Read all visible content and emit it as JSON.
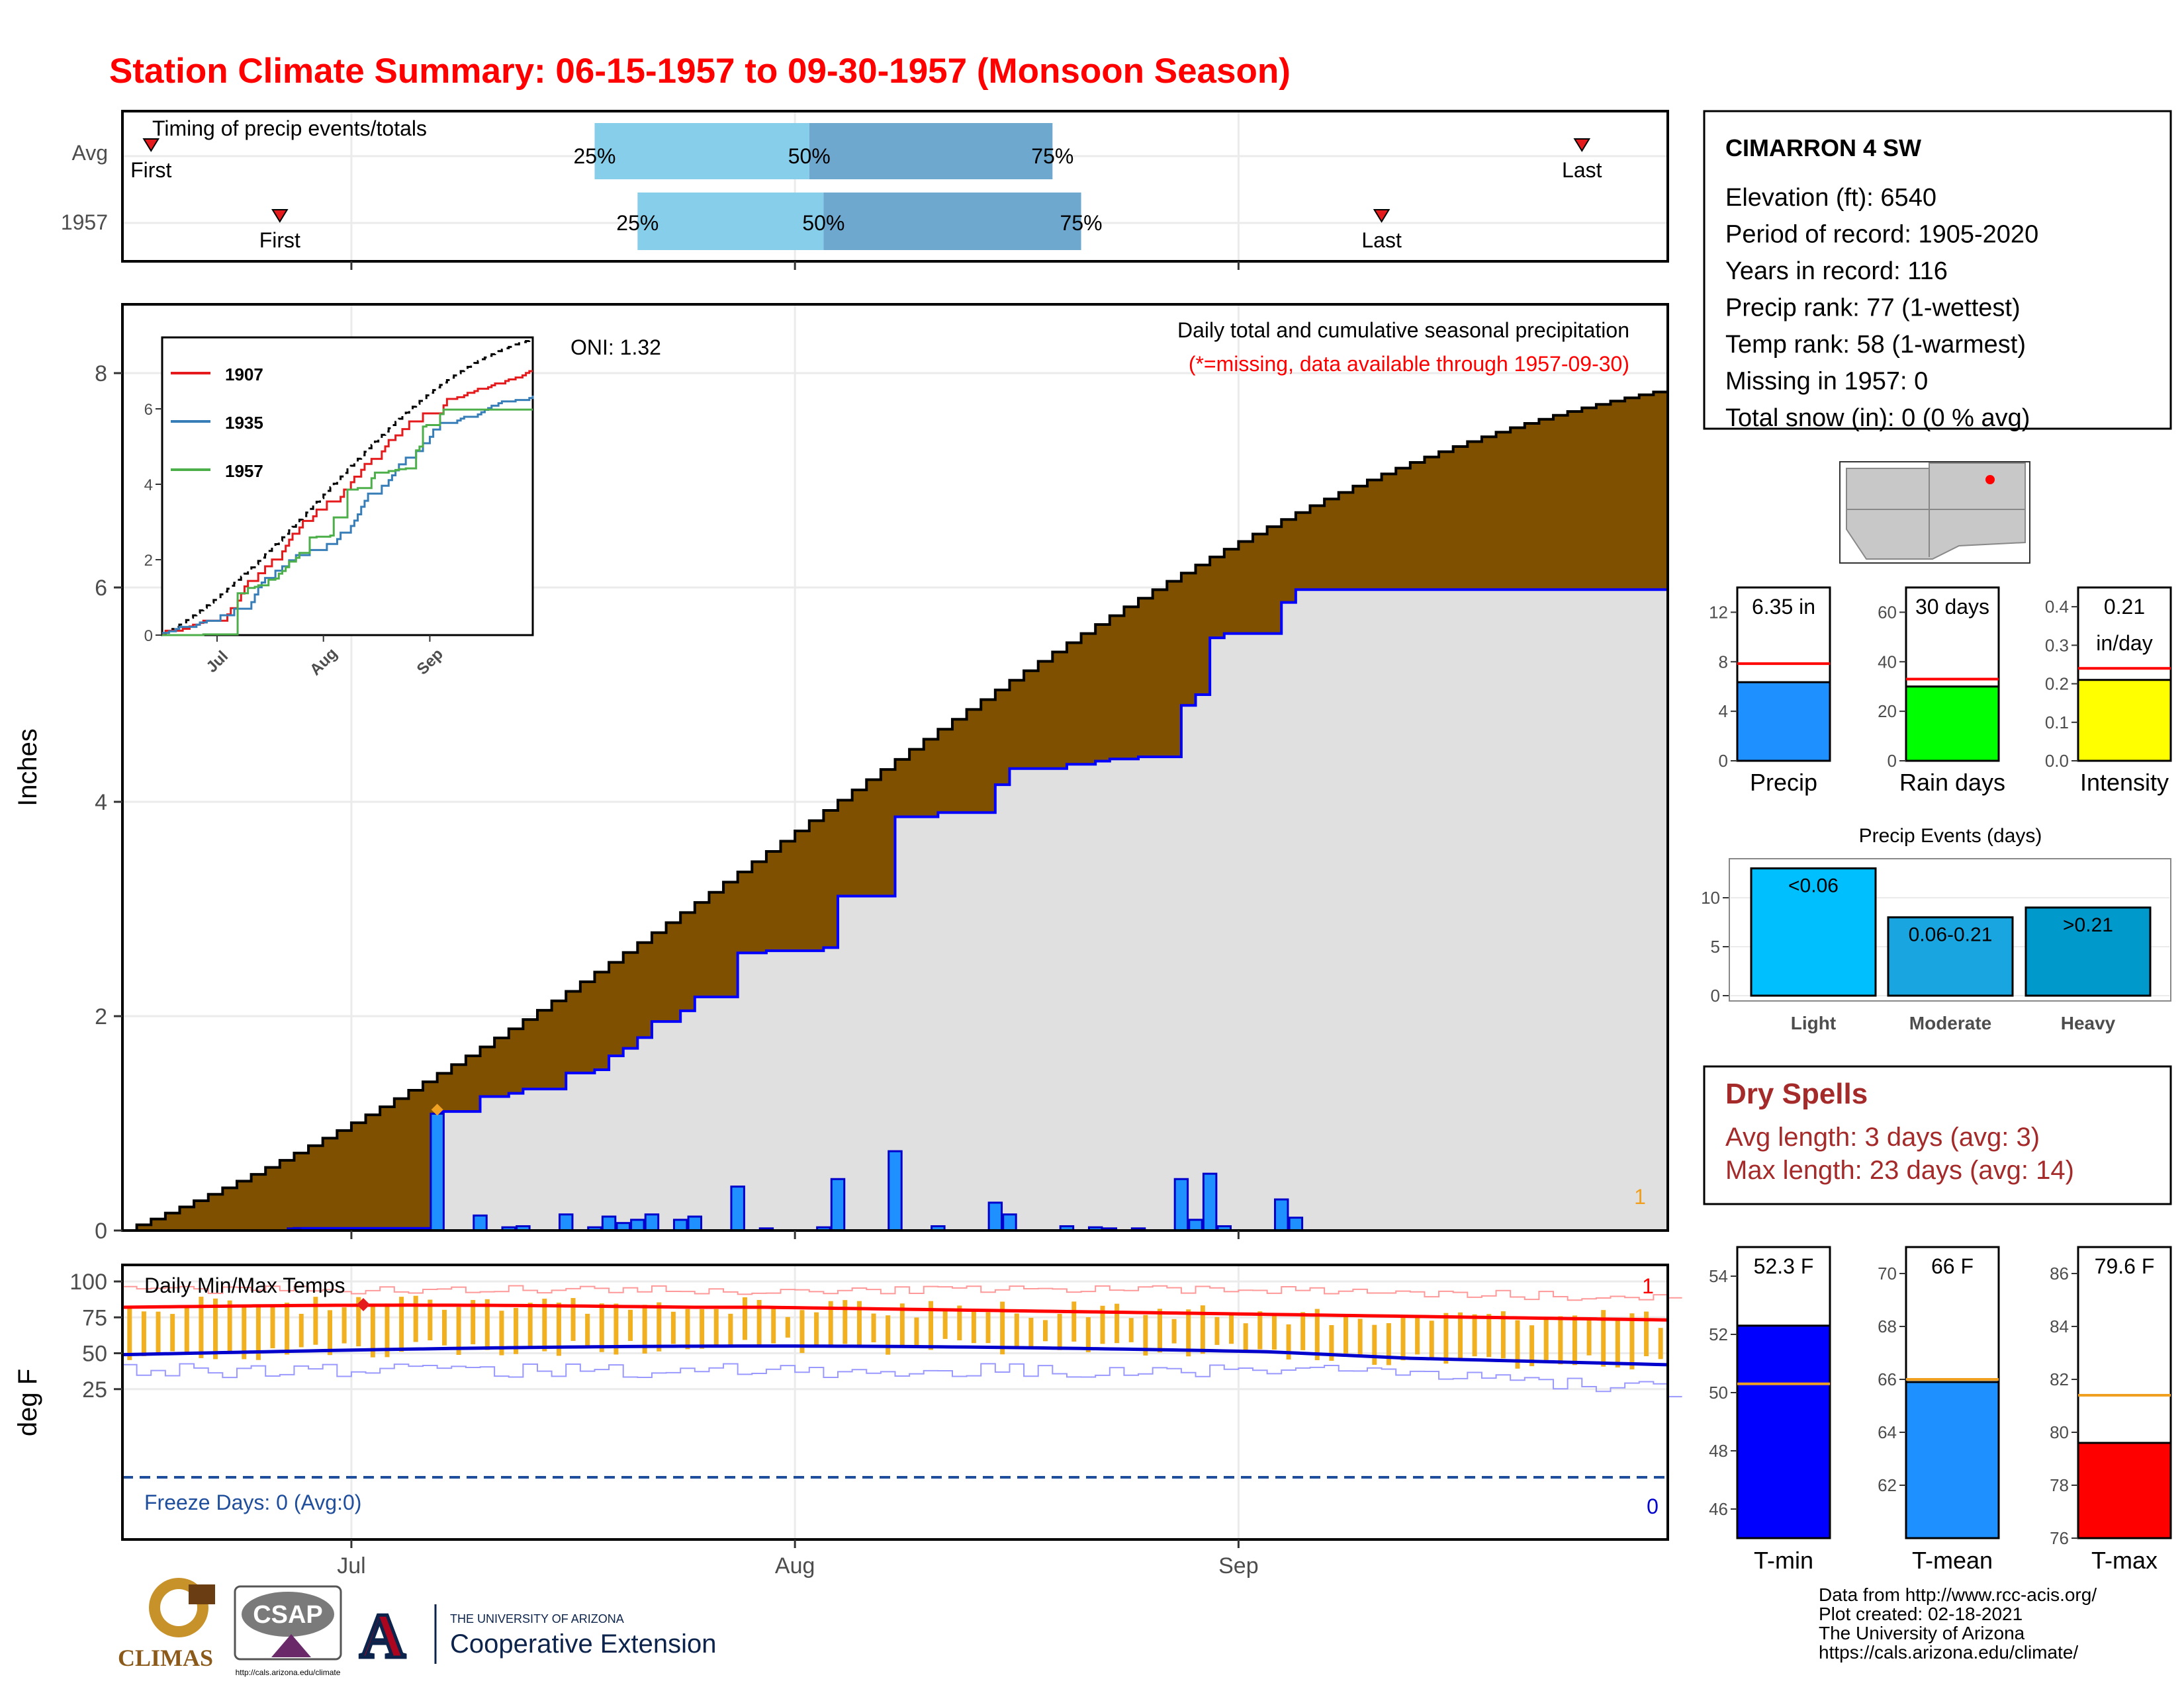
{
  "title": "Station Climate Summary: 06-15-1957 to 09-30-1957 (Monsoon Season)",
  "timing_panel": {
    "label": "Timing of precip events/totals",
    "rows": [
      {
        "name": "Avg",
        "first": "Jun 17",
        "p25": "Jul 18",
        "p50": "Aug 2",
        "p75": "Aug 19",
        "last": "Sep 25"
      },
      {
        "name": "1957",
        "first": "Jun 26",
        "p25": "Jul 21",
        "p50": "Aug 3",
        "p75": "Aug 21",
        "last": "Sep 11"
      }
    ],
    "labels": {
      "first": "First",
      "last": "Last",
      "p25": "25%",
      "p50": "50%",
      "p75": "75%"
    }
  },
  "precip_panel": {
    "ylabel": "Inches",
    "yticks": [
      "0",
      "2",
      "4",
      "6",
      "8"
    ],
    "oni": "ONI: 1.32",
    "title": "Daily total and cumulative seasonal precipitation",
    "missing_note": "(*=missing, data available through 1957-09-30)",
    "missing_count": "1",
    "season_avg_total": 7.85,
    "observed_total": 6.35,
    "daily_bars": [
      {
        "date": "Jun 27",
        "value": 0.02
      },
      {
        "date": "Jul 7",
        "value": 1.09
      },
      {
        "date": "Jul 10",
        "value": 0.14
      },
      {
        "date": "Jul 12",
        "value": 0.03
      },
      {
        "date": "Jul 13",
        "value": 0.04
      },
      {
        "date": "Jul 16",
        "value": 0.15
      },
      {
        "date": "Jul 18",
        "value": 0.03
      },
      {
        "date": "Jul 19",
        "value": 0.13
      },
      {
        "date": "Jul 20",
        "value": 0.07
      },
      {
        "date": "Jul 21",
        "value": 0.1
      },
      {
        "date": "Jul 22",
        "value": 0.15
      },
      {
        "date": "Jul 24",
        "value": 0.1
      },
      {
        "date": "Jul 25",
        "value": 0.13
      },
      {
        "date": "Jul 28",
        "value": 0.41
      },
      {
        "date": "Jul 30",
        "value": 0.02
      },
      {
        "date": "Aug 3",
        "value": 0.03
      },
      {
        "date": "Aug 4",
        "value": 0.48
      },
      {
        "date": "Aug 8",
        "value": 0.74
      },
      {
        "date": "Aug 11",
        "value": 0.04
      },
      {
        "date": "Aug 15",
        "value": 0.26
      },
      {
        "date": "Aug 16",
        "value": 0.15
      },
      {
        "date": "Aug 20",
        "value": 0.04
      },
      {
        "date": "Aug 22",
        "value": 0.03
      },
      {
        "date": "Aug 23",
        "value": 0.02
      },
      {
        "date": "Aug 25",
        "value": 0.02
      },
      {
        "date": "Aug 28",
        "value": 0.48
      },
      {
        "date": "Aug 29",
        "value": 0.1
      },
      {
        "date": "Aug 30",
        "value": 0.53
      },
      {
        "date": "Aug 31",
        "value": 0.04
      },
      {
        "date": "Sep 4",
        "value": 0.29
      },
      {
        "date": "Sep 5",
        "value": 0.12
      }
    ],
    "max_day": {
      "date": "Jul 7",
      "value": 1.09
    }
  },
  "inset": {
    "yticks": [
      "0",
      "2",
      "4",
      "6"
    ],
    "xticks": [
      "Jul",
      "Aug",
      "Sep"
    ],
    "legend": [
      {
        "name": "1907",
        "color": "#e41a1c"
      },
      {
        "name": "1935",
        "color": "#377eb8"
      },
      {
        "name": "1957",
        "color": "#4daf4a"
      }
    ]
  },
  "temp_panel": {
    "ylabel": "deg F",
    "label": "Daily Min/Max Temps",
    "yticks": [
      "25",
      "50",
      "75",
      "100"
    ],
    "freeze": "Freeze Days: 0 (Avg:0)",
    "freeze_count": "0",
    "record_count": "1"
  },
  "xaxis": {
    "ticks": [
      "Jul",
      "Aug",
      "Sep"
    ]
  },
  "station": {
    "name": "CIMARRON 4 SW",
    "lines": [
      "Elevation (ft): 6540",
      "Period of record: 1905-2020",
      "Years in record: 116",
      "Precip rank: 77 (1-wettest)",
      "Temp rank: 58 (1-warmest)",
      "Missing in 1957: 0",
      "Total snow (in): 0 (0 % avg)"
    ]
  },
  "mini_charts": [
    {
      "label": "Precip",
      "value_text": "6.35 in",
      "value": 6.35,
      "avg": 7.85,
      "ylim": [
        0,
        14
      ],
      "yticks": [
        "0",
        "4",
        "8",
        "12"
      ],
      "color": "#1e90ff"
    },
    {
      "label": "Rain days",
      "value_text": "30 days",
      "value": 30,
      "avg": 33,
      "ylim": [
        0,
        70
      ],
      "yticks": [
        "0",
        "20",
        "40",
        "60"
      ],
      "color": "#00ff00"
    },
    {
      "label": "Intensity",
      "value_text": "0.21",
      "value_text2": "in/day",
      "value": 0.21,
      "avg": 0.24,
      "ylim": [
        0,
        0.45
      ],
      "yticks": [
        "0.0",
        "0.1",
        "0.2",
        "0.3",
        "0.4"
      ],
      "color": "#ffff00"
    }
  ],
  "precip_events": {
    "title": "Precip Events (days)",
    "yticks": [
      "0",
      "5",
      "10"
    ],
    "bars": [
      {
        "label": "Light",
        "range": "<0.06",
        "value": 13,
        "color": "#00bfff"
      },
      {
        "label": "Moderate",
        "range": "0.06-0.21",
        "value": 8,
        "color": "#19a6e0"
      },
      {
        "label": "Heavy",
        "range": ">0.21",
        "value": 9,
        "color": "#0099cc"
      }
    ]
  },
  "dry_spells": {
    "title": "Dry Spells",
    "avg_line": "Avg length: 3 days (avg: 3)",
    "max_line": "Max length: 23 days (avg: 14)"
  },
  "temp_charts": [
    {
      "label": "T-min",
      "value_text": "52.3 F",
      "value": 52.3,
      "avg": 50.3,
      "ylim": [
        45,
        55
      ],
      "yticks": [
        "46",
        "48",
        "50",
        "52",
        "54"
      ],
      "color": "#0000ff"
    },
    {
      "label": "T-mean",
      "value_text": "66 F",
      "value": 65.9,
      "avg": 66.0,
      "ylim": [
        60,
        71
      ],
      "yticks": [
        "62",
        "64",
        "66",
        "68",
        "70"
      ],
      "color": "#1e90ff"
    },
    {
      "label": "T-max",
      "value_text": "79.6 F",
      "value": 79.6,
      "avg": 81.4,
      "ylim": [
        76,
        87
      ],
      "yticks": [
        "76",
        "78",
        "80",
        "82",
        "84",
        "86"
      ],
      "color": "#ff0000"
    }
  ],
  "credits": [
    "Data from http://www.rcc-acis.org/",
    "Plot created: 02-18-2021",
    "The University of Arizona",
    "https://cals.arizona.edu/climate/"
  ],
  "logos": {
    "climas": "CLIMAS",
    "csap": "CSAP",
    "csap_url": "http://cals.arizona.edu/climate",
    "ua_line1": "THE UNIVERSITY OF ARIZONA",
    "ua_line2": "Cooperative Extension",
    "ua_letter": "A"
  },
  "colors": {
    "title": "#ff0000",
    "deficit_fill": "#7f5000",
    "observed_fill": "#e0e0e0",
    "observed_line": "#0000ff",
    "bar_fill": "#1e90ff",
    "timing_light": "#87ceeb",
    "timing_dark": "#6fa8cf",
    "temp_bar": "#f0b020",
    "tmax_line": "#ff0000",
    "tmin_line": "#0000cc",
    "dry_spell_text": "#a52a2a"
  }
}
